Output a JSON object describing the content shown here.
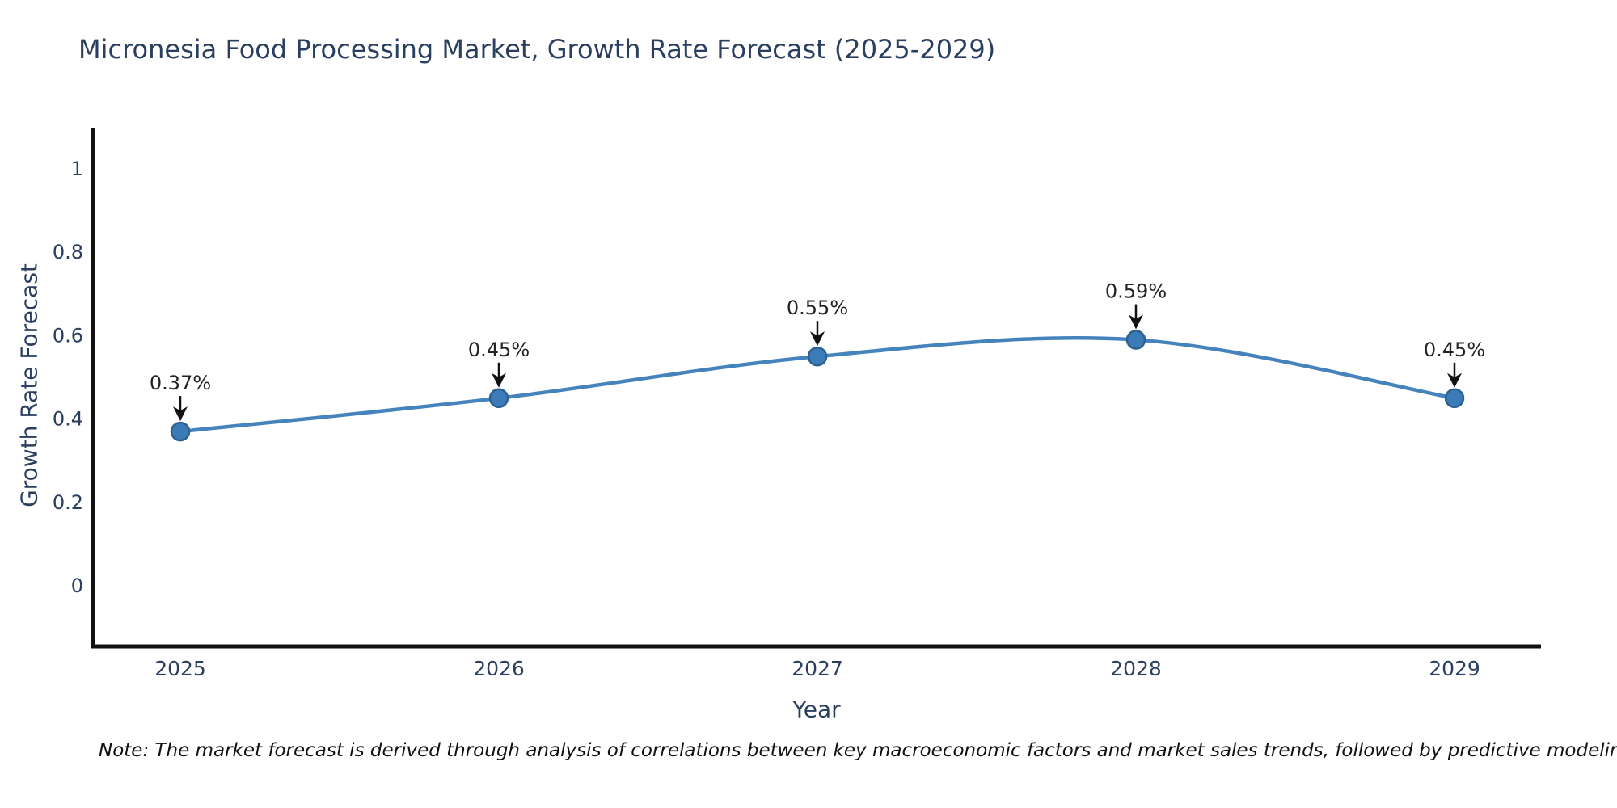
{
  "title": "Micronesia Food Processing Market, Growth Rate Forecast (2025-2029)",
  "note": "Note: The market forecast is derived through analysis of correlations between key macroeconomic factors and market sales trends, followed by predictive modeling to project future sales",
  "chart_data": {
    "type": "line",
    "line_shape": "spline",
    "title": "Micronesia Food Processing Market, Growth Rate Forecast (2025-2029)",
    "xlabel": "Year",
    "ylabel": "Growth Rate Forecast",
    "categories": [
      "2025",
      "2026",
      "2027",
      "2028",
      "2029"
    ],
    "values": [
      0.37,
      0.45,
      0.55,
      0.59,
      0.45
    ],
    "point_labels": [
      "0.37%",
      "0.45%",
      "0.55%",
      "0.59%",
      "0.45%"
    ],
    "yticks": [
      "0",
      "0.2",
      "0.4",
      "0.6",
      "0.8",
      "1"
    ],
    "ylim": [
      -0.15,
      1.1
    ],
    "grid": false,
    "legend": "none",
    "annotation_style": "black-arrow-down-to-point",
    "colors": {
      "line": "#4483bc",
      "marker": "#3b7bb8",
      "marker_edge": "#2d618f",
      "axis": "#111111",
      "text": "#2a3f5f",
      "annotation": "#222222",
      "arrow": "#111111",
      "background": "#ffffff"
    }
  }
}
